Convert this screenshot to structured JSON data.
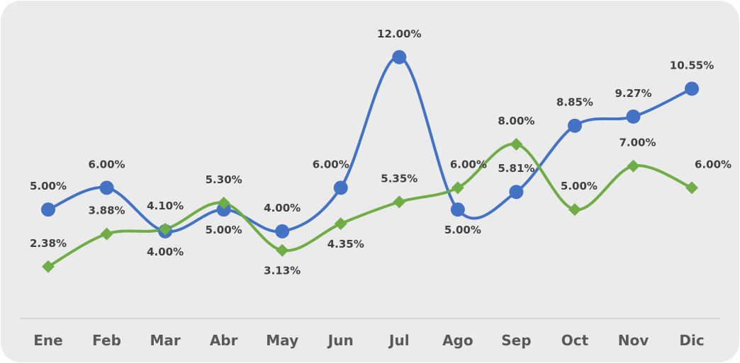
{
  "chart_data": {
    "type": "line",
    "categories": [
      "Ene",
      "Feb",
      "Mar",
      "Abr",
      "May",
      "Jun",
      "Jul",
      "Ago",
      "Sep",
      "Oct",
      "Nov",
      "Dic"
    ],
    "ylim": [
      0,
      13
    ],
    "series": [
      {
        "color": "#4472c4",
        "marker": "circle",
        "values": [
          5.0,
          6.0,
          4.0,
          5.0,
          4.0,
          6.0,
          12.0,
          5.0,
          5.81,
          8.85,
          9.27,
          10.55
        ],
        "value_labels": [
          "5.00%",
          "6.00%",
          "4.00%",
          "5.00%",
          "4.00%",
          "6.00%",
          "12.00%",
          "5.00%",
          "5.81%",
          "8.85%",
          "9.27%",
          "10.55%"
        ]
      },
      {
        "color": "#70ad47",
        "marker": "diamond",
        "values": [
          2.38,
          3.88,
          4.1,
          5.3,
          3.13,
          4.35,
          5.35,
          6.0,
          8.0,
          5.0,
          7.0,
          6.0
        ],
        "value_labels": [
          "2.38%",
          "3.88%",
          "4.10%",
          "5.30%",
          "3.13%",
          "4.35%",
          "5.35%",
          "6.00%",
          "8.00%",
          "5.00%",
          "7.00%",
          "6.00%"
        ]
      }
    ]
  }
}
